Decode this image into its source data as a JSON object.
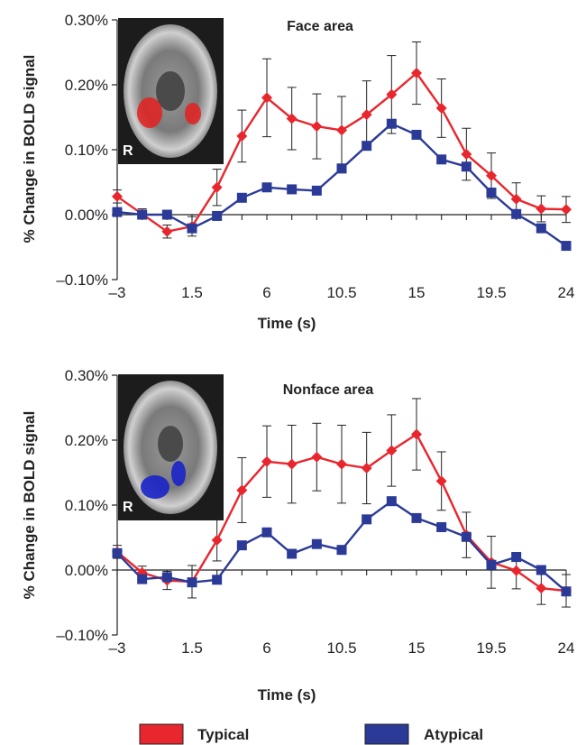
{
  "colors": {
    "typical": "#e8262d",
    "atypical": "#2b3a96",
    "axis": "#222222"
  },
  "legend": [
    {
      "label": "Typical",
      "color": "#e8262d"
    },
    {
      "label": "Atypical",
      "color": "#2b3a96"
    }
  ],
  "chart_data": [
    {
      "type": "line",
      "title": "Face area",
      "xlabel": "Time (s)",
      "ylabel": "% Change in BOLD signal",
      "xlim": [
        -3,
        24
      ],
      "ylim": [
        -0.1,
        0.3
      ],
      "xticks": [
        -3,
        1.5,
        6,
        10.5,
        15,
        19.5,
        24
      ],
      "xtick_labels": [
        "–3",
        "1.5",
        "6",
        "10.5",
        "15",
        "19.5",
        "24"
      ],
      "yticks": [
        -0.1,
        0.0,
        0.1,
        0.2,
        0.3
      ],
      "ytick_labels": [
        "–0.10%",
        "0.00%",
        "0.10%",
        "0.20%",
        "0.30%"
      ],
      "inset": {
        "label": "R",
        "highlight": "red"
      },
      "x": [
        -3,
        -1.5,
        0,
        1.5,
        3,
        4.5,
        6,
        7.5,
        9,
        10.5,
        12,
        13.5,
        15,
        16.5,
        18,
        19.5,
        21,
        22.5,
        24
      ],
      "series": [
        {
          "name": "Typical",
          "marker": "diamond",
          "values": [
            0.028,
            0.001,
            -0.026,
            -0.018,
            0.042,
            0.121,
            0.18,
            0.148,
            0.136,
            0.13,
            0.154,
            0.185,
            0.218,
            0.164,
            0.093,
            0.06,
            0.024,
            0.009,
            0.008
          ],
          "errors": [
            0.01,
            0.008,
            0.01,
            0.015,
            0.028,
            0.04,
            0.06,
            0.048,
            0.05,
            0.052,
            0.052,
            0.06,
            0.048,
            0.045,
            0.04,
            0.035,
            0.025,
            0.02,
            0.02
          ]
        },
        {
          "name": "Atypical",
          "marker": "square",
          "values": [
            0.004,
            0.0,
            0.0,
            -0.021,
            -0.002,
            0.026,
            0.042,
            0.039,
            0.037,
            0.071,
            0.106,
            0.14,
            0.123,
            0.085,
            0.074,
            0.034,
            0.001,
            -0.021,
            -0.048
          ]
        }
      ]
    },
    {
      "type": "line",
      "title": "Nonface area",
      "xlabel": "Time (s)",
      "ylabel": "% Change in BOLD signal",
      "xlim": [
        -3,
        24
      ],
      "ylim": [
        -0.1,
        0.3
      ],
      "xticks": [
        -3,
        1.5,
        6,
        10.5,
        15,
        19.5,
        24
      ],
      "xtick_labels": [
        "–3",
        "1.5",
        "6",
        "10.5",
        "15",
        "19.5",
        "24"
      ],
      "yticks": [
        -0.1,
        0.0,
        0.1,
        0.2,
        0.3
      ],
      "ytick_labels": [
        "–0.10%",
        "0.00%",
        "0.10%",
        "0.20%",
        "0.30%"
      ],
      "inset": {
        "label": "R",
        "highlight": "blue"
      },
      "x": [
        -3,
        -1.5,
        0,
        1.5,
        3,
        4.5,
        6,
        7.5,
        9,
        10.5,
        12,
        13.5,
        15,
        16.5,
        18,
        19.5,
        21,
        22.5,
        24
      ],
      "series": [
        {
          "name": "Typical",
          "marker": "diamond",
          "values": [
            0.028,
            -0.004,
            -0.016,
            -0.018,
            0.046,
            0.123,
            0.167,
            0.163,
            0.174,
            0.163,
            0.157,
            0.184,
            0.209,
            0.137,
            0.054,
            0.012,
            -0.001,
            -0.028,
            -0.032
          ],
          "errors": [
            0.01,
            0.01,
            0.014,
            0.025,
            0.032,
            0.05,
            0.055,
            0.06,
            0.052,
            0.06,
            0.055,
            0.055,
            0.055,
            0.045,
            0.035,
            0.04,
            0.028,
            0.025,
            0.025
          ]
        },
        {
          "name": "Atypical",
          "marker": "square",
          "values": [
            0.026,
            -0.014,
            -0.011,
            -0.019,
            -0.015,
            0.038,
            0.058,
            0.025,
            0.04,
            0.031,
            0.078,
            0.106,
            0.08,
            0.066,
            0.051,
            0.008,
            0.02,
            0.0,
            -0.033
          ]
        }
      ]
    }
  ]
}
